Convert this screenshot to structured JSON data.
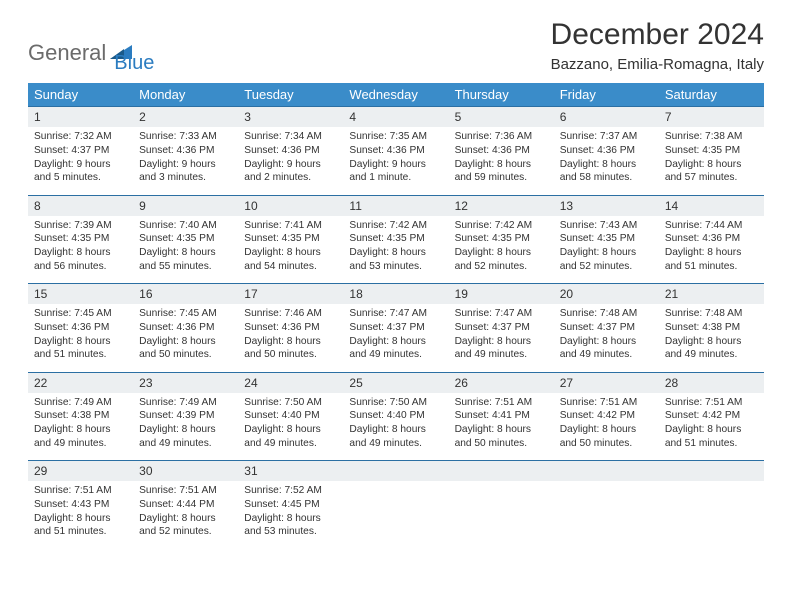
{
  "logo": {
    "text1": "General",
    "text2": "Blue"
  },
  "title": "December 2024",
  "location": "Bazzano, Emilia-Romagna, Italy",
  "colors": {
    "header_bg": "#3a8cc9",
    "header_text": "#ffffff",
    "day_border": "#2b6fa3",
    "daynum_bg": "#eceff1",
    "text": "#333333",
    "logo_gray": "#6b6b6b",
    "logo_blue": "#2b7cc0"
  },
  "weekdays": [
    "Sunday",
    "Monday",
    "Tuesday",
    "Wednesday",
    "Thursday",
    "Friday",
    "Saturday"
  ],
  "weeks": [
    [
      {
        "n": "1",
        "sr": "7:32 AM",
        "ss": "4:37 PM",
        "dl": "9 hours and 5 minutes."
      },
      {
        "n": "2",
        "sr": "7:33 AM",
        "ss": "4:36 PM",
        "dl": "9 hours and 3 minutes."
      },
      {
        "n": "3",
        "sr": "7:34 AM",
        "ss": "4:36 PM",
        "dl": "9 hours and 2 minutes."
      },
      {
        "n": "4",
        "sr": "7:35 AM",
        "ss": "4:36 PM",
        "dl": "9 hours and 1 minute."
      },
      {
        "n": "5",
        "sr": "7:36 AM",
        "ss": "4:36 PM",
        "dl": "8 hours and 59 minutes."
      },
      {
        "n": "6",
        "sr": "7:37 AM",
        "ss": "4:36 PM",
        "dl": "8 hours and 58 minutes."
      },
      {
        "n": "7",
        "sr": "7:38 AM",
        "ss": "4:35 PM",
        "dl": "8 hours and 57 minutes."
      }
    ],
    [
      {
        "n": "8",
        "sr": "7:39 AM",
        "ss": "4:35 PM",
        "dl": "8 hours and 56 minutes."
      },
      {
        "n": "9",
        "sr": "7:40 AM",
        "ss": "4:35 PM",
        "dl": "8 hours and 55 minutes."
      },
      {
        "n": "10",
        "sr": "7:41 AM",
        "ss": "4:35 PM",
        "dl": "8 hours and 54 minutes."
      },
      {
        "n": "11",
        "sr": "7:42 AM",
        "ss": "4:35 PM",
        "dl": "8 hours and 53 minutes."
      },
      {
        "n": "12",
        "sr": "7:42 AM",
        "ss": "4:35 PM",
        "dl": "8 hours and 52 minutes."
      },
      {
        "n": "13",
        "sr": "7:43 AM",
        "ss": "4:35 PM",
        "dl": "8 hours and 52 minutes."
      },
      {
        "n": "14",
        "sr": "7:44 AM",
        "ss": "4:36 PM",
        "dl": "8 hours and 51 minutes."
      }
    ],
    [
      {
        "n": "15",
        "sr": "7:45 AM",
        "ss": "4:36 PM",
        "dl": "8 hours and 51 minutes."
      },
      {
        "n": "16",
        "sr": "7:45 AM",
        "ss": "4:36 PM",
        "dl": "8 hours and 50 minutes."
      },
      {
        "n": "17",
        "sr": "7:46 AM",
        "ss": "4:36 PM",
        "dl": "8 hours and 50 minutes."
      },
      {
        "n": "18",
        "sr": "7:47 AM",
        "ss": "4:37 PM",
        "dl": "8 hours and 49 minutes."
      },
      {
        "n": "19",
        "sr": "7:47 AM",
        "ss": "4:37 PM",
        "dl": "8 hours and 49 minutes."
      },
      {
        "n": "20",
        "sr": "7:48 AM",
        "ss": "4:37 PM",
        "dl": "8 hours and 49 minutes."
      },
      {
        "n": "21",
        "sr": "7:48 AM",
        "ss": "4:38 PM",
        "dl": "8 hours and 49 minutes."
      }
    ],
    [
      {
        "n": "22",
        "sr": "7:49 AM",
        "ss": "4:38 PM",
        "dl": "8 hours and 49 minutes."
      },
      {
        "n": "23",
        "sr": "7:49 AM",
        "ss": "4:39 PM",
        "dl": "8 hours and 49 minutes."
      },
      {
        "n": "24",
        "sr": "7:50 AM",
        "ss": "4:40 PM",
        "dl": "8 hours and 49 minutes."
      },
      {
        "n": "25",
        "sr": "7:50 AM",
        "ss": "4:40 PM",
        "dl": "8 hours and 49 minutes."
      },
      {
        "n": "26",
        "sr": "7:51 AM",
        "ss": "4:41 PM",
        "dl": "8 hours and 50 minutes."
      },
      {
        "n": "27",
        "sr": "7:51 AM",
        "ss": "4:42 PM",
        "dl": "8 hours and 50 minutes."
      },
      {
        "n": "28",
        "sr": "7:51 AM",
        "ss": "4:42 PM",
        "dl": "8 hours and 51 minutes."
      }
    ],
    [
      {
        "n": "29",
        "sr": "7:51 AM",
        "ss": "4:43 PM",
        "dl": "8 hours and 51 minutes."
      },
      {
        "n": "30",
        "sr": "7:51 AM",
        "ss": "4:44 PM",
        "dl": "8 hours and 52 minutes."
      },
      {
        "n": "31",
        "sr": "7:52 AM",
        "ss": "4:45 PM",
        "dl": "8 hours and 53 minutes."
      },
      null,
      null,
      null,
      null
    ]
  ],
  "labels": {
    "sunrise": "Sunrise:",
    "sunset": "Sunset:",
    "daylight": "Daylight:"
  }
}
